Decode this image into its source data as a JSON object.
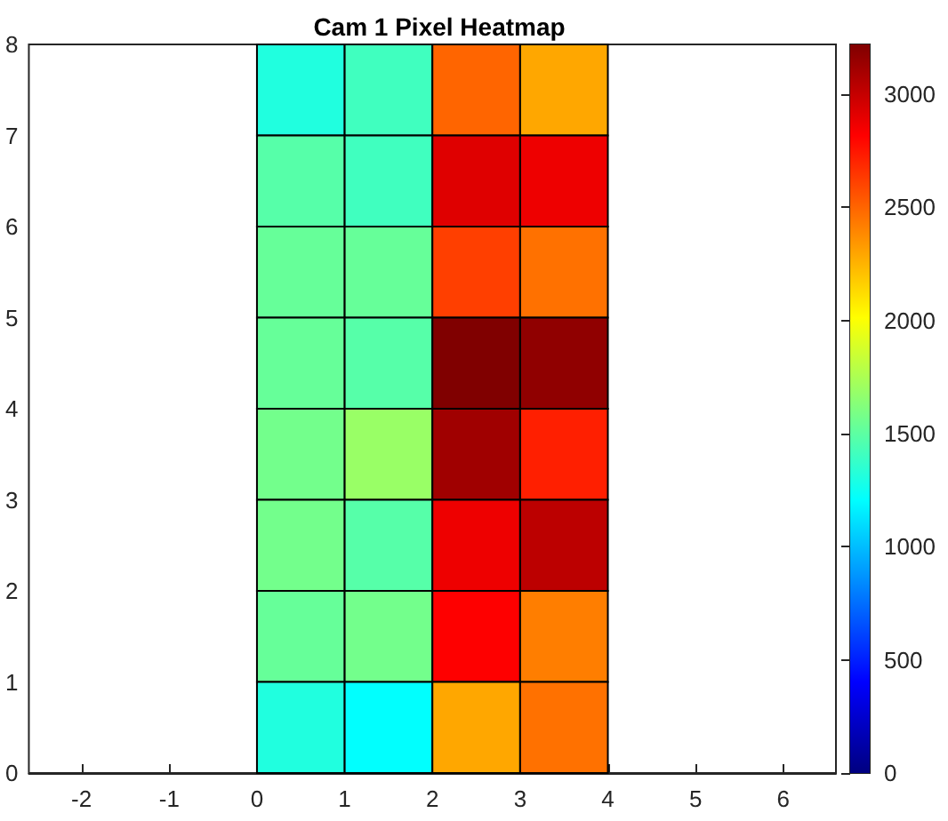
{
  "chart_data": {
    "type": "heatmap",
    "title": "Cam 1 Pixel Heatmap",
    "x": [
      0.5,
      1.5,
      2.5,
      3.5
    ],
    "xlim": [
      -2.6,
      6.6
    ],
    "xticks": [
      -2,
      -1,
      0,
      1,
      2,
      3,
      4,
      5,
      6
    ],
    "ylim": [
      0,
      8
    ],
    "yticks": [
      0,
      1,
      2,
      3,
      4,
      5,
      6,
      7,
      8
    ],
    "cells": [
      [
        1310,
        1410,
        2500,
        2290
      ],
      [
        1480,
        1410,
        2920,
        2870
      ],
      [
        1530,
        1530,
        2620,
        2460
      ],
      [
        1530,
        1480,
        3220,
        3170
      ],
      [
        1570,
        1690,
        3120,
        2720
      ],
      [
        1570,
        1480,
        2870,
        3030
      ],
      [
        1530,
        1570,
        2820,
        2420
      ],
      [
        1310,
        1210,
        2290,
        2460
      ]
    ],
    "clim": [
      0,
      3220
    ],
    "cticks": [
      0,
      500,
      1000,
      1500,
      2000,
      2500,
      3000
    ]
  }
}
